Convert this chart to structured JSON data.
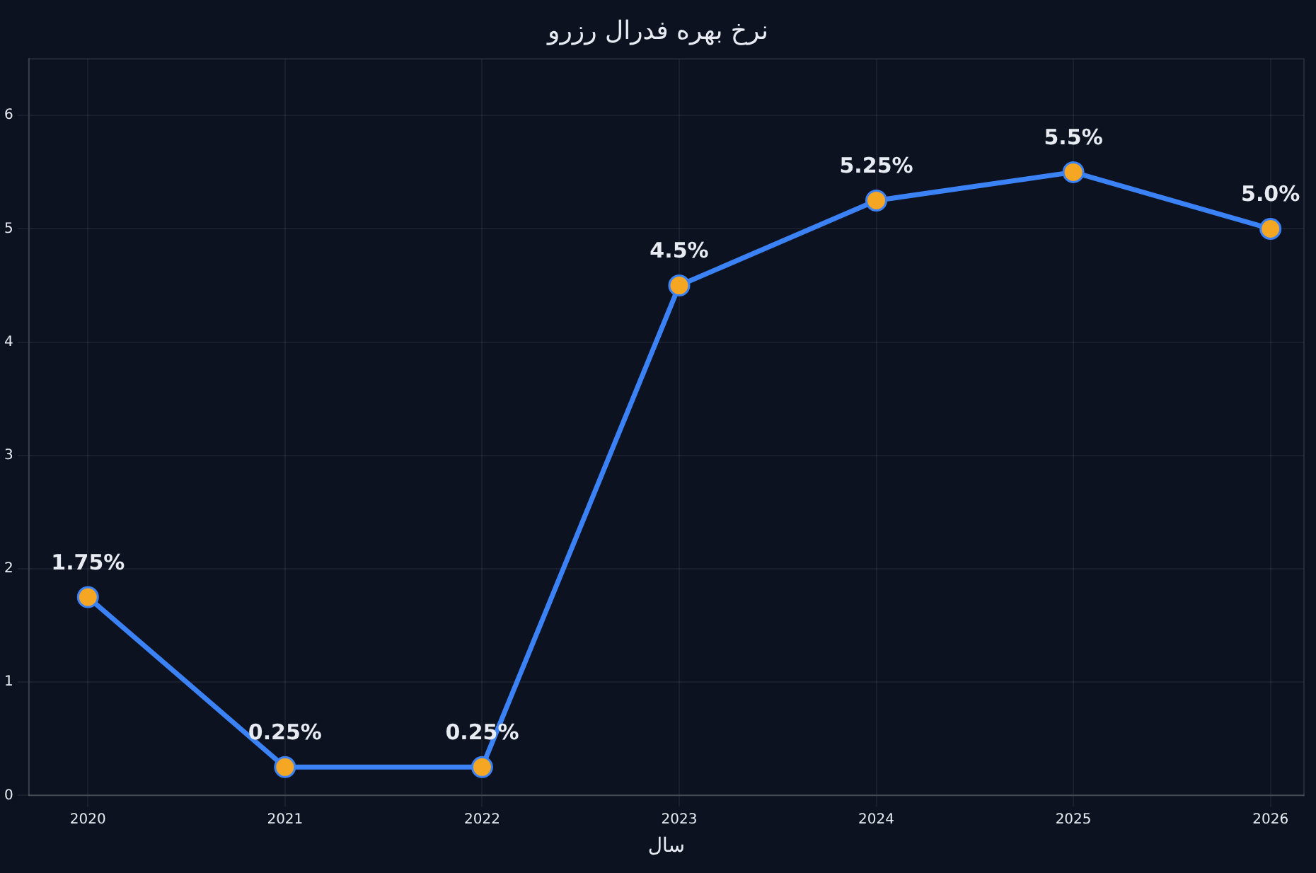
{
  "chart_data": {
    "type": "line",
    "title": "نرخ بهره فدرال رزرو",
    "xlabel": "سال",
    "x": [
      2020,
      2021,
      2022,
      2023,
      2024,
      2025,
      2026
    ],
    "series": [
      {
        "color": "#3b82f6",
        "values": [
          1.75,
          0.25,
          0.25,
          4.5,
          5.25,
          5.5,
          5.0
        ],
        "value_labels": [
          "1.75%",
          "0.25%",
          "0.25%",
          "4.5%",
          "5.25%",
          "5.5%",
          "5.0%"
        ]
      }
    ],
    "xlim": [
      2019.7,
      2026.17
    ],
    "xticks": [
      2020,
      2021,
      2022,
      2023,
      2024,
      2025,
      2026
    ],
    "ylim": [
      0,
      6.5
    ],
    "yticks": [
      0,
      1,
      2,
      3,
      4,
      5,
      6
    ],
    "grid": true,
    "legend": false,
    "marker": "circle",
    "line_style": "solid"
  }
}
